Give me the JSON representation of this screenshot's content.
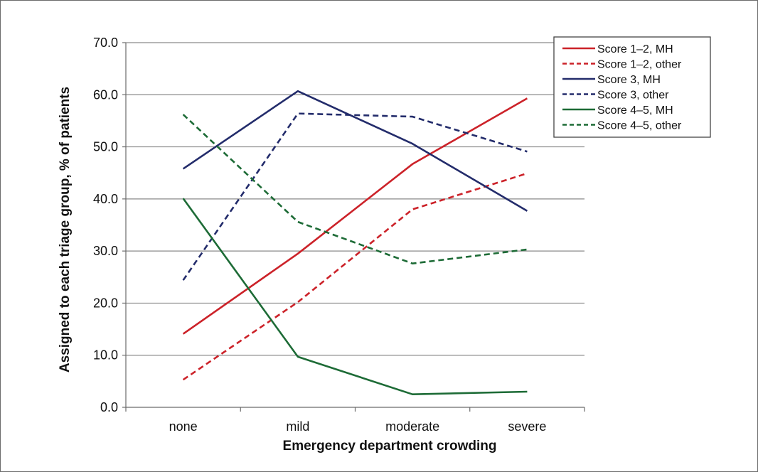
{
  "chart_data": {
    "type": "line",
    "title": "",
    "xlabel": "Emergency department crowding",
    "ylabel": "Assigned to each triage group, % of patients",
    "categories": [
      "none",
      "mild",
      "moderate",
      "severe"
    ],
    "ylim": [
      0,
      70
    ],
    "yticks": [
      "0.0",
      "10.0",
      "20.0",
      "30.0",
      "40.0",
      "50.0",
      "60.0",
      "70.0"
    ],
    "grid": true,
    "legend_position": "top-right",
    "series": [
      {
        "name": "Score 1–2, MH",
        "values": [
          14.1,
          29.5,
          46.7,
          59.3
        ],
        "color": "#cc2229",
        "dash": "solid"
      },
      {
        "name": "Score 1–2, other",
        "values": [
          5.3,
          20.2,
          38.0,
          44.9
        ],
        "color": "#cc2229",
        "dash": "dashed"
      },
      {
        "name": "Score 3, MH",
        "values": [
          45.8,
          60.7,
          50.6,
          37.7
        ],
        "color": "#232c6b",
        "dash": "solid"
      },
      {
        "name": "Score 3, other",
        "values": [
          24.4,
          56.4,
          55.8,
          49.1
        ],
        "color": "#232c6b",
        "dash": "dashed"
      },
      {
        "name": "Score 4–5, MH",
        "values": [
          40.1,
          9.7,
          2.5,
          3.0
        ],
        "color": "#1d6b36",
        "dash": "solid"
      },
      {
        "name": "Score 4–5, other",
        "values": [
          56.2,
          35.6,
          27.6,
          30.3
        ],
        "color": "#1d6b36",
        "dash": "dashed"
      }
    ]
  }
}
